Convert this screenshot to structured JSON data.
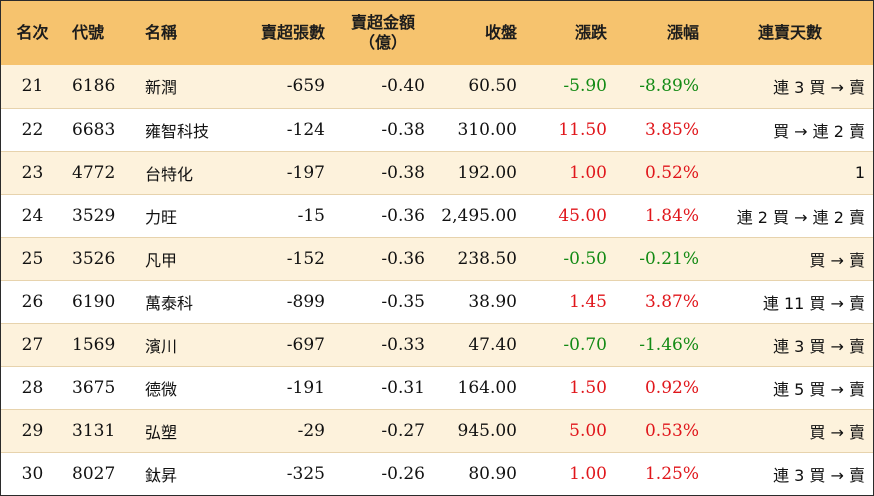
{
  "colors": {
    "header_bg": "#f6c36e",
    "alt_row_bg": "#fdf2dc",
    "up": "#e0161b",
    "down": "#138a14"
  },
  "headers": {
    "rank": "名次",
    "code": "代號",
    "name": "名稱",
    "shares": "賣超張數",
    "amount_line1": "賣超金額",
    "amount_line2": "（億）",
    "close": "收盤",
    "change": "漲跌",
    "pct": "漲幅",
    "streak": "連賣天數"
  },
  "rows": [
    {
      "rank": "21",
      "code": "6186",
      "name": "新潤",
      "shares": "-659",
      "amount": "-0.40",
      "close": "60.50",
      "change": "-5.90",
      "pct": "-8.89%",
      "dir": "down",
      "streak": "連 3 買 → 賣"
    },
    {
      "rank": "22",
      "code": "6683",
      "name": "雍智科技",
      "shares": "-124",
      "amount": "-0.38",
      "close": "310.00",
      "change": "11.50",
      "pct": "3.85%",
      "dir": "up",
      "streak": "買 → 連 2 賣"
    },
    {
      "rank": "23",
      "code": "4772",
      "name": "台特化",
      "shares": "-197",
      "amount": "-0.38",
      "close": "192.00",
      "change": "1.00",
      "pct": "0.52%",
      "dir": "up",
      "streak": "1"
    },
    {
      "rank": "24",
      "code": "3529",
      "name": "力旺",
      "shares": "-15",
      "amount": "-0.36",
      "close": "2,495.00",
      "change": "45.00",
      "pct": "1.84%",
      "dir": "up",
      "streak": "連 2 買 → 連 2 賣"
    },
    {
      "rank": "25",
      "code": "3526",
      "name": "凡甲",
      "shares": "-152",
      "amount": "-0.36",
      "close": "238.50",
      "change": "-0.50",
      "pct": "-0.21%",
      "dir": "down",
      "streak": "買 → 賣"
    },
    {
      "rank": "26",
      "code": "6190",
      "name": "萬泰科",
      "shares": "-899",
      "amount": "-0.35",
      "close": "38.90",
      "change": "1.45",
      "pct": "3.87%",
      "dir": "up",
      "streak": "連 11 買 → 賣"
    },
    {
      "rank": "27",
      "code": "1569",
      "name": "濱川",
      "shares": "-697",
      "amount": "-0.33",
      "close": "47.40",
      "change": "-0.70",
      "pct": "-1.46%",
      "dir": "down",
      "streak": "連 3 買 → 賣"
    },
    {
      "rank": "28",
      "code": "3675",
      "name": "德微",
      "shares": "-191",
      "amount": "-0.31",
      "close": "164.00",
      "change": "1.50",
      "pct": "0.92%",
      "dir": "up",
      "streak": "連 5 買 → 賣"
    },
    {
      "rank": "29",
      "code": "3131",
      "name": "弘塑",
      "shares": "-29",
      "amount": "-0.27",
      "close": "945.00",
      "change": "5.00",
      "pct": "0.53%",
      "dir": "up",
      "streak": "買 → 賣"
    },
    {
      "rank": "30",
      "code": "8027",
      "name": "鈦昇",
      "shares": "-325",
      "amount": "-0.26",
      "close": "80.90",
      "change": "1.00",
      "pct": "1.25%",
      "dir": "up",
      "streak": "連 3 買 → 賣"
    }
  ]
}
